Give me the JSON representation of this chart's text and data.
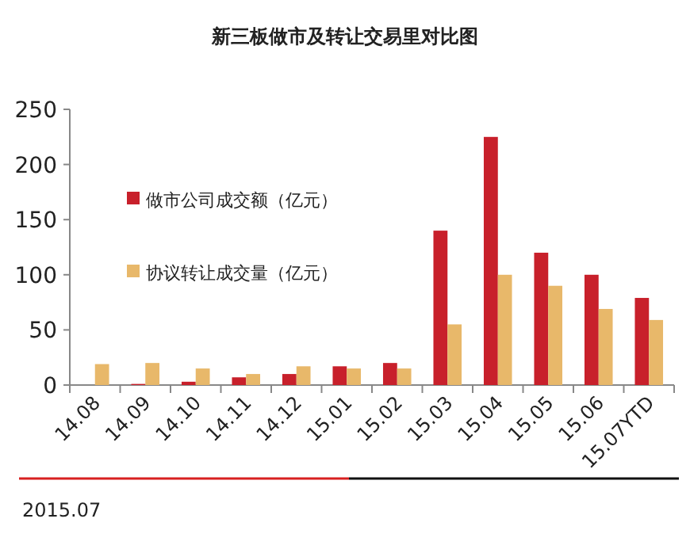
{
  "chart_data": {
    "type": "bar",
    "title": "新三板做市及转让交易里对比图",
    "categories": [
      "14.08",
      "14.09",
      "14.10",
      "14.11",
      "14.12",
      "15.01",
      "15.02",
      "15.03",
      "15.04",
      "15.05",
      "15.06",
      "15.07YTD"
    ],
    "series": [
      {
        "name": "做市公司成交额（亿元）",
        "color": "#c8202b",
        "values": [
          0,
          1,
          3,
          7,
          10,
          17,
          20,
          140,
          225,
          120,
          100,
          79
        ]
      },
      {
        "name": "协议转让成交量（亿元）",
        "color": "#e8b86a",
        "values": [
          19,
          20,
          15,
          10,
          17,
          15,
          15,
          55,
          100,
          90,
          69,
          59
        ]
      }
    ],
    "ylim": [
      0,
      250
    ],
    "yticks": [
      0,
      50,
      100,
      150,
      200,
      250
    ],
    "grid": false,
    "legend": "left",
    "annotations": [
      "2015.07"
    ]
  }
}
